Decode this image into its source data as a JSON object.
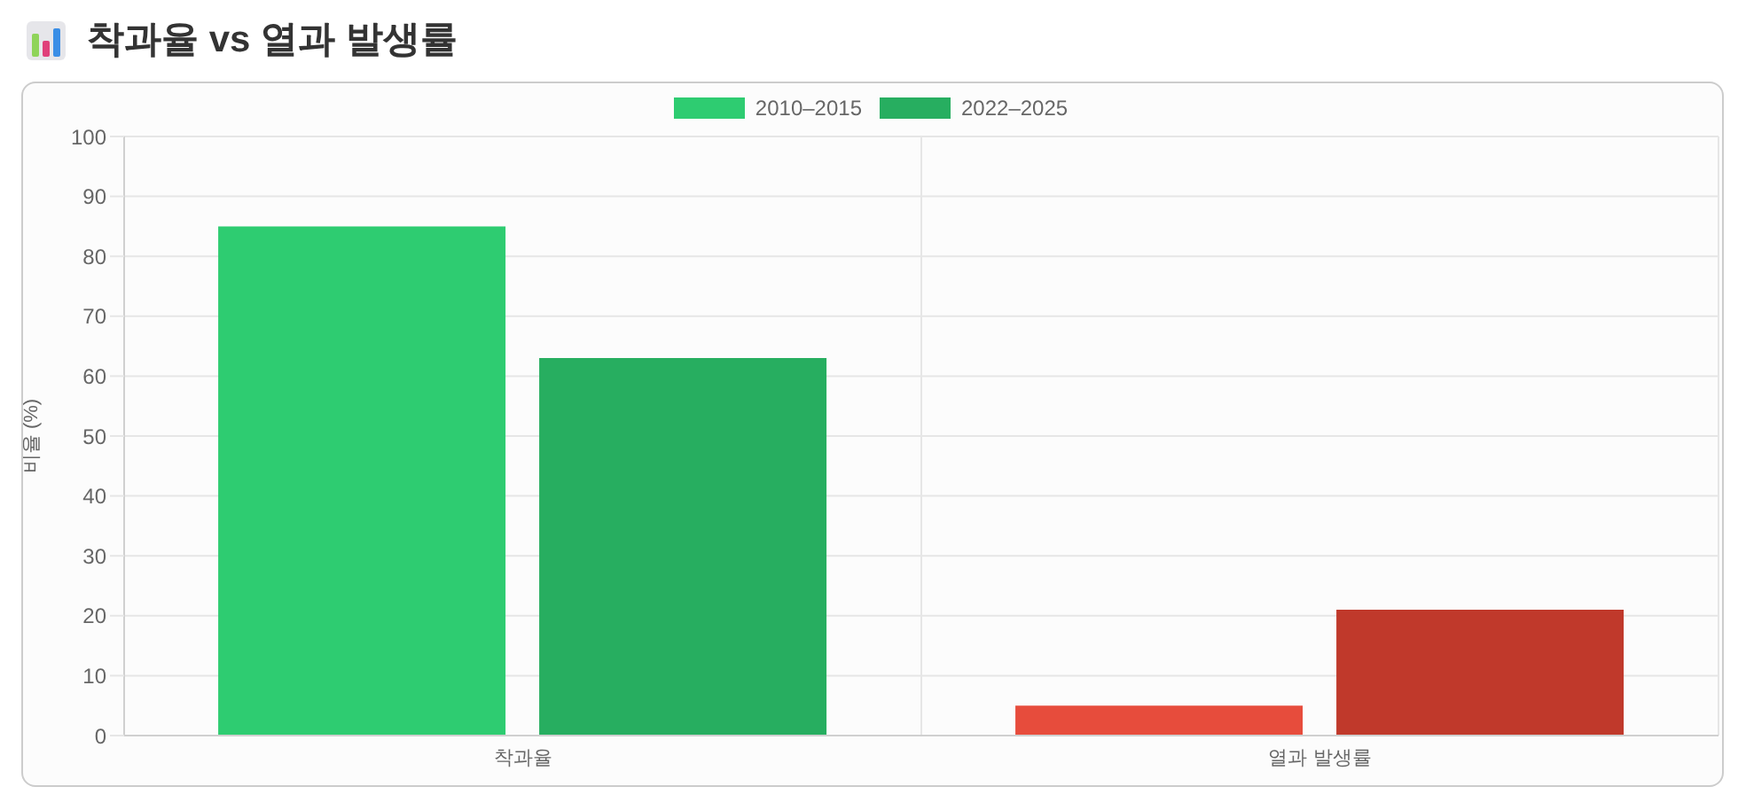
{
  "chart_data": {
    "type": "bar",
    "title": "착과율 vs 열과 발생률",
    "ylabel": "비율 (%)",
    "categories": [
      "착과율",
      "열과 발생률"
    ],
    "series": [
      {
        "name": "2010–2015",
        "color": "#2ecc71",
        "colors": [
          "#2ecc71",
          "#e74c3c"
        ],
        "values": [
          85,
          5
        ]
      },
      {
        "name": "2022–2025",
        "color": "#27ae60",
        "colors": [
          "#27ae60",
          "#c0392b"
        ],
        "values": [
          63,
          21
        ]
      }
    ],
    "ylim": [
      0,
      100
    ],
    "yticks": [
      0,
      10,
      20,
      30,
      40,
      50,
      60,
      70,
      80,
      90,
      100
    ],
    "grid": true,
    "legend": "top"
  }
}
